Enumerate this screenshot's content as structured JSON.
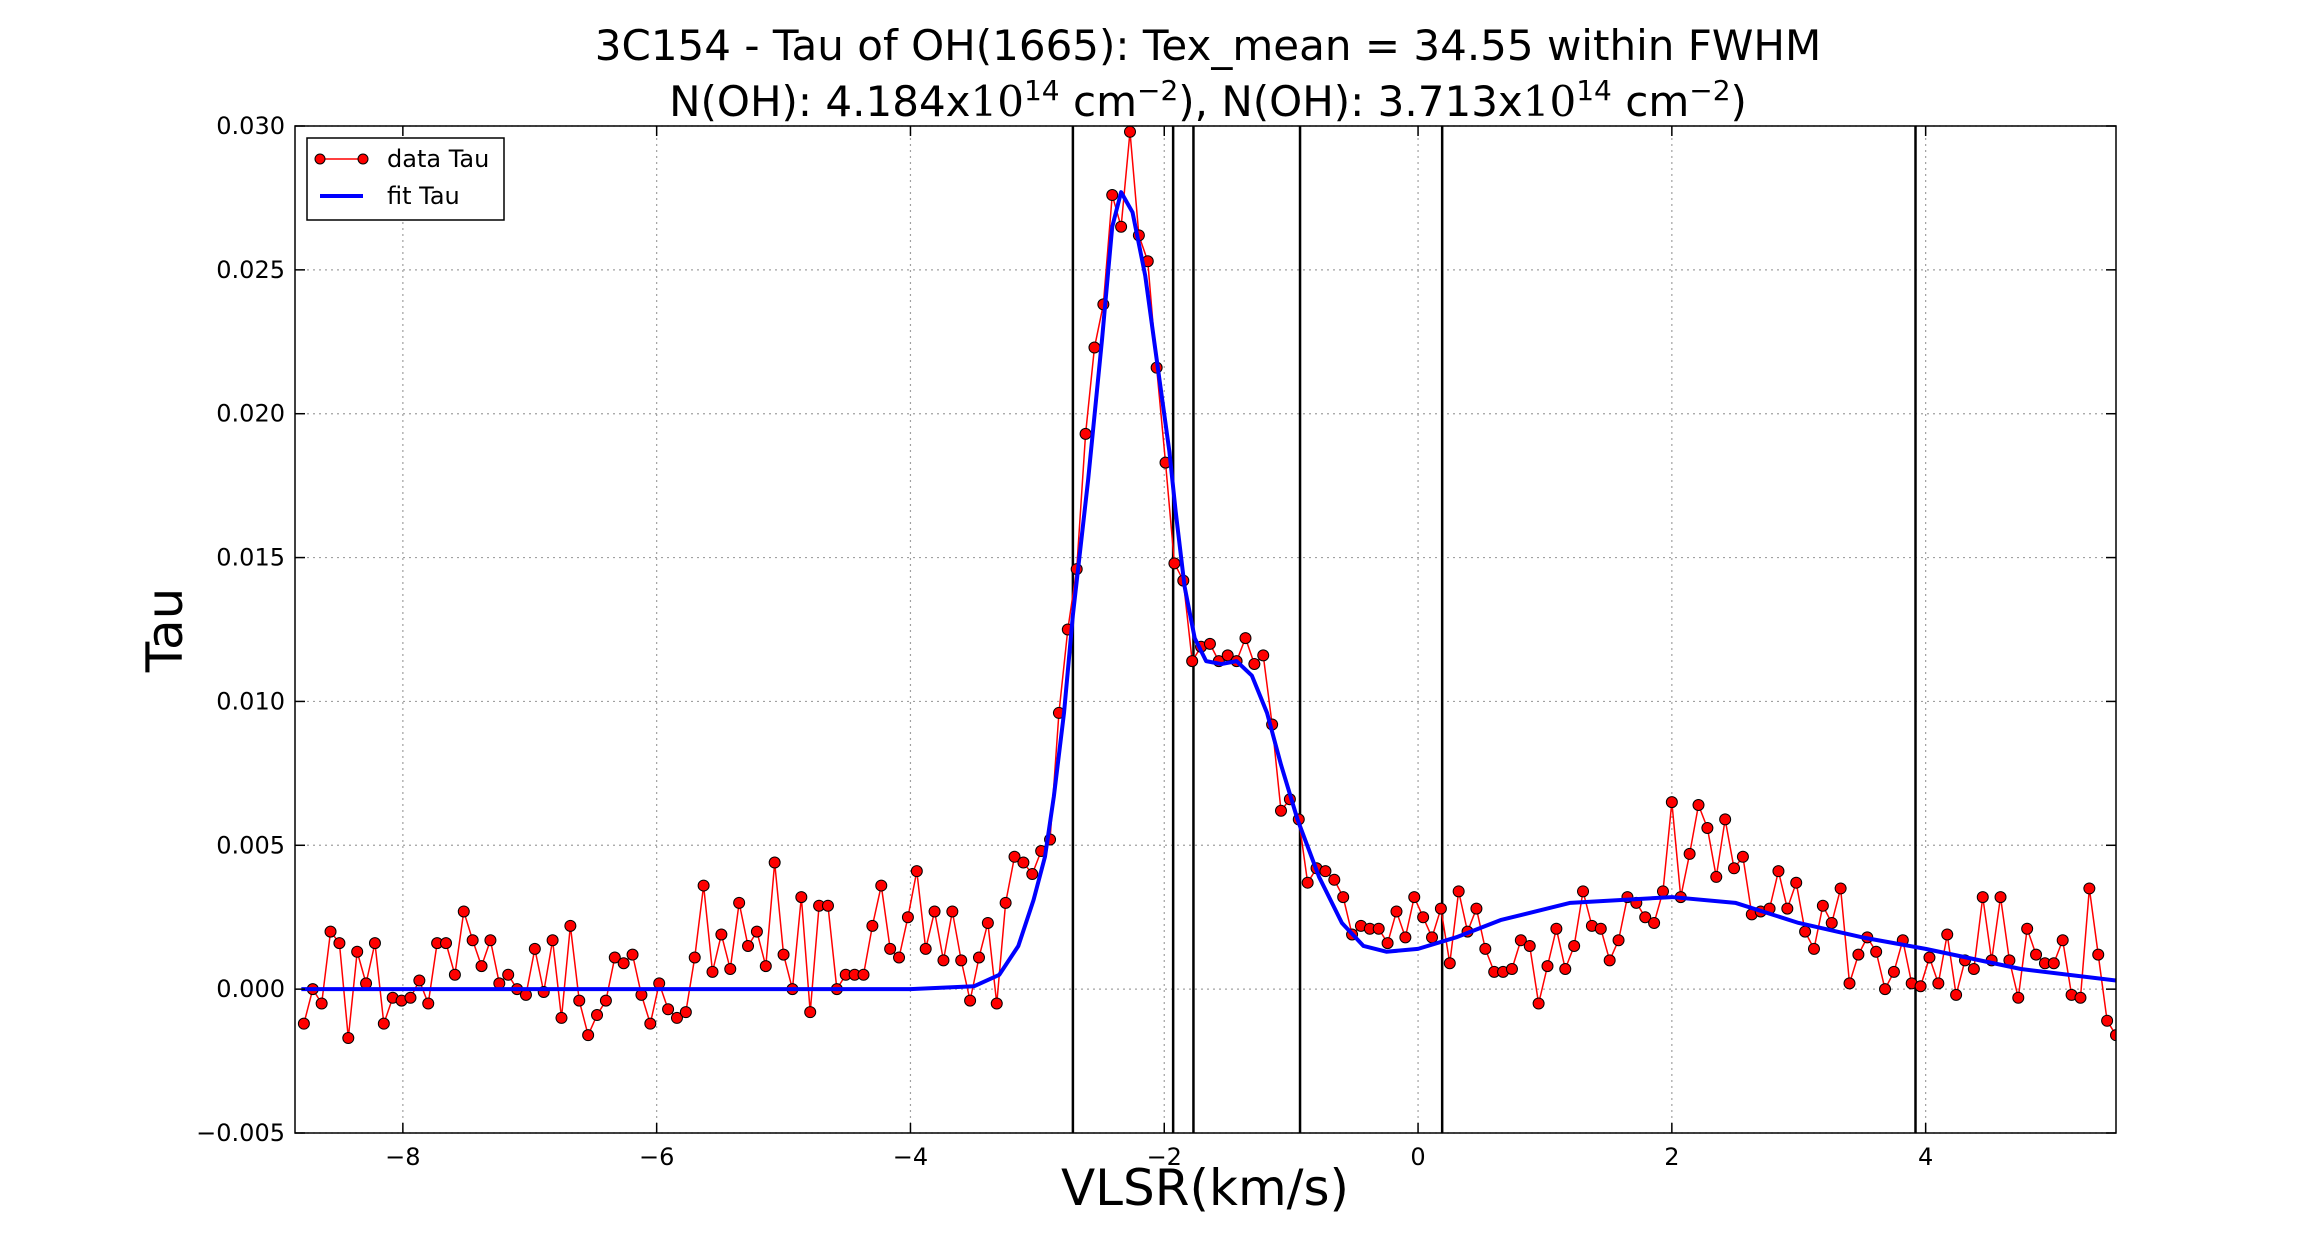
{
  "chart_data": {
    "type": "line",
    "title": "3C154 - Tau of OH(1665): Tex_mean = 34.55 within FWHM",
    "subtitle_parts": [
      {
        "text": "N(OH): 4.184x"
      },
      {
        "text": "10",
        "math": true
      },
      {
        "text": "14",
        "sup": true
      },
      {
        "text": "  cm"
      },
      {
        "text": "−2",
        "sup": true
      },
      {
        "text": "), N(OH): 3.713x"
      },
      {
        "text": "10",
        "math": true
      },
      {
        "text": "14",
        "sup": true
      },
      {
        "text": "  cm"
      },
      {
        "text": "−2",
        "sup": true
      },
      {
        "text": ")"
      }
    ],
    "xlabel": "VLSR(km/s)",
    "ylabel": "Tau",
    "xlim": [
      -8.85,
      5.5
    ],
    "ylim": [
      -0.005,
      0.03
    ],
    "xticks": [
      {
        "value": -8,
        "label": "−8"
      },
      {
        "value": -6,
        "label": "−6"
      },
      {
        "value": -4,
        "label": "−4"
      },
      {
        "value": -2,
        "label": "−2"
      },
      0,
      2,
      4
    ],
    "yticks": [
      {
        "value": -0.005,
        "label": "−0.005"
      },
      {
        "value": 0,
        "label": "0.000"
      },
      {
        "value": 0.005,
        "label": "0.005"
      },
      {
        "value": 0.01,
        "label": "0.010"
      },
      {
        "value": 0.015,
        "label": "0.015"
      },
      {
        "value": 0.02,
        "label": "0.020"
      },
      {
        "value": 0.025,
        "label": "0.025"
      },
      {
        "value": 0.03,
        "label": "0.030"
      }
    ],
    "grid": true,
    "legend": "upper left",
    "vlines": [
      -2.72,
      -1.93,
      -1.77,
      -0.93,
      0.19,
      3.92
    ],
    "vline_color": "#000000",
    "series": [
      {
        "name": "data Tau",
        "color": "#ff0000",
        "marker": "o",
        "x": [
          -8.78,
          -8.71,
          -8.64,
          -8.57,
          -8.5,
          -8.43,
          -8.36,
          -8.29,
          -8.22,
          -8.15,
          -8.08,
          -8.01,
          -7.94,
          -7.87,
          -7.8,
          -7.73,
          -7.66,
          -7.59,
          -7.52,
          -7.45,
          -7.38,
          -7.31,
          -7.24,
          -7.17,
          -7.1,
          -7.03,
          -6.96,
          -6.89,
          -6.82,
          -6.75,
          -6.68,
          -6.61,
          -6.54,
          -6.47,
          -6.4,
          -6.33,
          -6.26,
          -6.19,
          -6.12,
          -6.05,
          -5.98,
          -5.91,
          -5.84,
          -5.77,
          -5.7,
          -5.63,
          -5.56,
          -5.49,
          -5.42,
          -5.35,
          -5.28,
          -5.21,
          -5.14,
          -5.07,
          -5.0,
          -4.93,
          -4.86,
          -4.79,
          -4.72,
          -4.65,
          -4.58,
          -4.51,
          -4.44,
          -4.37,
          -4.3,
          -4.23,
          -4.16,
          -4.09,
          -4.02,
          -3.95,
          -3.88,
          -3.81,
          -3.74,
          -3.67,
          -3.6,
          -3.53,
          -3.46,
          -3.39,
          -3.32,
          -3.25,
          -3.18,
          -3.11,
          -3.04,
          -2.97,
          -2.9,
          -2.83,
          -2.76,
          -2.69,
          -2.62,
          -2.55,
          -2.48,
          -2.41,
          -2.34,
          -2.27,
          -2.2,
          -2.13,
          -2.06,
          -1.99,
          -1.92,
          -1.85,
          -1.78,
          -1.71,
          -1.64,
          -1.57,
          -1.5,
          -1.43,
          -1.36,
          -1.29,
          -1.22,
          -1.15,
          -1.08,
          -1.01,
          -0.94,
          -0.87,
          -0.8,
          -0.73,
          -0.66,
          -0.59,
          -0.52,
          -0.45,
          -0.38,
          -0.31,
          -0.24,
          -0.17,
          -0.1,
          -0.03,
          0.04,
          0.11,
          0.18,
          0.25,
          0.32,
          0.39,
          0.46,
          0.53,
          0.6,
          0.67,
          0.74,
          0.81,
          0.88,
          0.95,
          1.02,
          1.09,
          1.16,
          1.23,
          1.3,
          1.37,
          1.44,
          1.51,
          1.58,
          1.65,
          1.72,
          1.79,
          1.86,
          1.93,
          2.0,
          2.07,
          2.14,
          2.21,
          2.28,
          2.35,
          2.42,
          2.49,
          2.56,
          2.63,
          2.7,
          2.77,
          2.84,
          2.91,
          2.98,
          3.05,
          3.12,
          3.19,
          3.26,
          3.33,
          3.4,
          3.47,
          3.54,
          3.61,
          3.68,
          3.75,
          3.82,
          3.89,
          3.96,
          4.03,
          4.1,
          4.17,
          4.24,
          4.31,
          4.38,
          4.45,
          4.52,
          4.59,
          4.66,
          4.73,
          4.8,
          4.87,
          4.94,
          5.01,
          5.08,
          5.15,
          5.22,
          5.29,
          5.36,
          5.43,
          5.5
        ],
        "values": [
          -0.0012,
          0,
          -0.0005,
          0.002,
          0.0016,
          -0.0017,
          0.0013,
          0.0002,
          0.0016,
          -0.0012,
          -0.0003,
          -0.0004,
          -0.0003,
          0.0003,
          -0.0005,
          0.0016,
          0.0016,
          0.0005,
          0.0027,
          0.0017,
          0.0008,
          0.0017,
          0.0002,
          0.0005,
          0,
          -0.0002,
          0.0014,
          -0.0001,
          0.0017,
          -0.001,
          0.0022,
          -0.0004,
          -0.0016,
          -0.0009,
          -0.0004,
          0.0011,
          0.0009,
          0.0012,
          -0.0002,
          -0.0012,
          0.0002,
          -0.0007,
          -0.001,
          -0.0008,
          0.0011,
          0.0036,
          0.0006,
          0.0019,
          0.0007,
          0.003,
          0.0015,
          0.002,
          0.0008,
          0.0044,
          0.0012,
          0,
          0.0032,
          -0.0008,
          0.0029,
          0.0029,
          0,
          0.0005,
          0.0005,
          0.0005,
          0.0022,
          0.0036,
          0.0014,
          0.0011,
          0.0025,
          0.0041,
          0.0014,
          0.0027,
          0.001,
          0.0027,
          0.001,
          -0.0004,
          0.0011,
          0.0023,
          -0.0005,
          0.003,
          0.0046,
          0.0044,
          0.004,
          0.0048,
          0.0052,
          0.0096,
          0.0125,
          0.0146,
          0.0193,
          0.0223,
          0.0238,
          0.0276,
          0.0265,
          0.0298,
          0.0262,
          0.0253,
          0.0216,
          0.0183,
          0.0148,
          0.0142,
          0.0114,
          0.0119,
          0.012,
          0.0114,
          0.0116,
          0.0114,
          0.0122,
          0.0113,
          0.0116,
          0.0092,
          0.0062,
          0.0066,
          0.0059,
          0.0037,
          0.0042,
          0.0041,
          0.0038,
          0.0032,
          0.0019,
          0.0022,
          0.0021,
          0.0021,
          0.0016,
          0.0027,
          0.0018,
          0.0032,
          0.0025,
          0.0018,
          0.0028,
          0.0009,
          0.0034,
          0.002,
          0.0028,
          0.0014,
          0.0006,
          0.0006,
          0.0007,
          0.0017,
          0.0015,
          -0.0005,
          0.0008,
          0.0021,
          0.0007,
          0.0015,
          0.0034,
          0.0022,
          0.0021,
          0.001,
          0.0017,
          0.0032,
          0.003,
          0.0025,
          0.0023,
          0.0034,
          0.0065,
          0.0032,
          0.0047,
          0.0064,
          0.0056,
          0.0039,
          0.0059,
          0.0042,
          0.0046,
          0.0026,
          0.0027,
          0.0028,
          0.0041,
          0.0028,
          0.0037,
          0.002,
          0.0014,
          0.0029,
          0.0023,
          0.0035,
          0.0002,
          0.0012,
          0.0018,
          0.0013,
          0,
          0.0006,
          0.0017,
          0.0002,
          0.0001,
          0.0011,
          0.0002,
          0.0019,
          -0.0002,
          0.001,
          0.0007,
          0.0032,
          0.001,
          0.0032,
          0.001,
          -0.0003,
          0.0021,
          0.0012,
          0.0009,
          0.0009,
          0.0017,
          -0.0002,
          -0.0003,
          0.0035,
          0.0012,
          -0.0011,
          -0.0016
        ]
      },
      {
        "name": "fit Tau",
        "color": "#0000ff",
        "x": [
          -8.8,
          -8,
          -7,
          -6,
          -5,
          -4,
          -3.5,
          -3.3,
          -3.15,
          -3.03,
          -2.94,
          -2.87,
          -2.79,
          -2.72,
          -2.6,
          -2.49,
          -2.41,
          -2.34,
          -2.25,
          -2.15,
          -2.06,
          -1.96,
          -1.91,
          -1.84,
          -1.76,
          -1.67,
          -1.55,
          -1.43,
          -1.31,
          -1.19,
          -1.08,
          -0.95,
          -0.78,
          -0.6,
          -0.43,
          -0.25,
          0,
          0.3,
          0.65,
          1.2,
          2,
          2.5,
          3,
          3.5,
          4,
          4.75,
          5.5
        ],
        "values": [
          0,
          0,
          0,
          0,
          0,
          0,
          0.0001,
          0.0005,
          0.0015,
          0.0031,
          0.0046,
          0.0067,
          0.0096,
          0.013,
          0.0177,
          0.0226,
          0.0265,
          0.0277,
          0.027,
          0.0248,
          0.0219,
          0.0187,
          0.0166,
          0.014,
          0.0122,
          0.0114,
          0.0113,
          0.0114,
          0.0109,
          0.0096,
          0.0078,
          0.0059,
          0.0039,
          0.0023,
          0.0015,
          0.0013,
          0.0014,
          0.0018,
          0.0024,
          0.003,
          0.0032,
          0.003,
          0.0023,
          0.0018,
          0.0014,
          0.0007,
          0.0003
        ]
      }
    ]
  }
}
